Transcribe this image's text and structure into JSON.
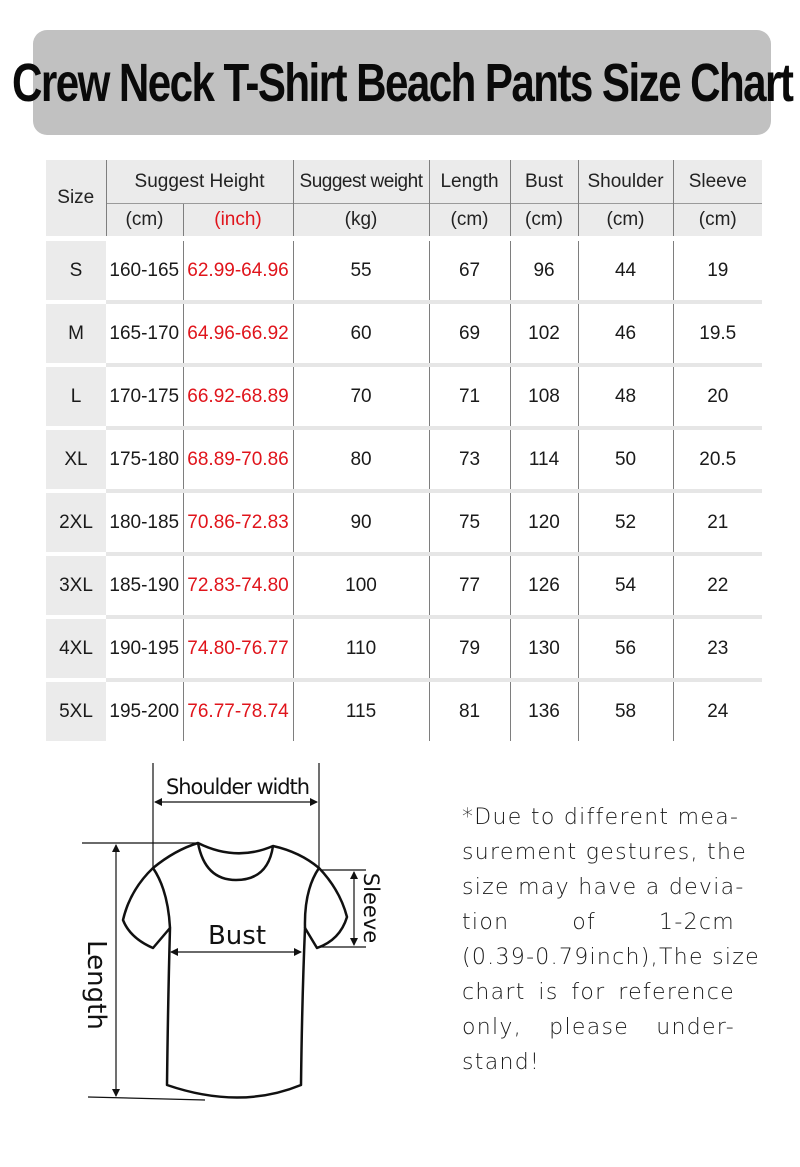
{
  "title": "Crew Neck T-Shirt Beach Pants Size Chart",
  "table": {
    "headers": {
      "size": "Size",
      "height": "Suggest Height",
      "weight": "Suggest weight",
      "length": "Length",
      "bust": "Bust",
      "shoulder": "Shoulder",
      "sleeve": "Sleeve"
    },
    "units": {
      "height_cm": "(cm)",
      "height_inch": "(inch)",
      "weight": "(kg)",
      "length": "(cm)",
      "bust": "(cm)",
      "shoulder": "(cm)",
      "sleeve": "(cm)"
    },
    "rows": [
      [
        "S",
        "160-165",
        "62.99-64.96",
        "55",
        "67",
        "96",
        "44",
        "19"
      ],
      [
        "M",
        "165-170",
        "64.96-66.92",
        "60",
        "69",
        "102",
        "46",
        "19.5"
      ],
      [
        "L",
        "170-175",
        "66.92-68.89",
        "70",
        "71",
        "108",
        "48",
        "20"
      ],
      [
        "XL",
        "175-180",
        "68.89-70.86",
        "80",
        "73",
        "114",
        "50",
        "20.5"
      ],
      [
        "2XL",
        "180-185",
        "70.86-72.83",
        "90",
        "75",
        "120",
        "52",
        "21"
      ],
      [
        "3XL",
        "185-190",
        "72.83-74.80",
        "100",
        "77",
        "126",
        "54",
        "22"
      ],
      [
        "4XL",
        "190-195",
        "74.80-76.77",
        "110",
        "79",
        "130",
        "56",
        "23"
      ],
      [
        "5XL",
        "195-200",
        "76.77-78.74",
        "115",
        "81",
        "136",
        "58",
        "24"
      ]
    ]
  },
  "diagram": {
    "shoulder_width": "Shoulder width",
    "bust": "Bust",
    "sleeve": "Sleeve",
    "length": "Length"
  },
  "note_lines": [
    "*Due to different mea-",
    "surement gestures, the",
    "size may have a devia-",
    "tion of 1-2cm",
    "(0.39-0.79inch),The size",
    "chart is for reference",
    "only, please under-",
    "stand!"
  ],
  "colors": {
    "banner": "#c1c1c1",
    "inch_text": "#e0141b",
    "header_bg": "#ebebeb"
  }
}
